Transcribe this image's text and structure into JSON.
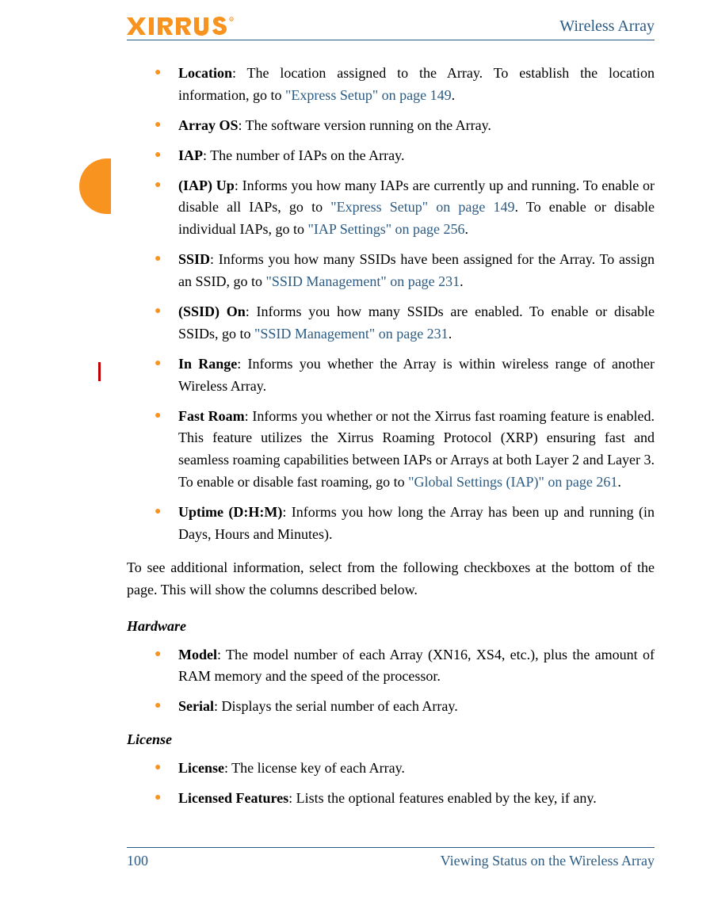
{
  "brand": {
    "name": "XIRRUS",
    "accent_orange": "#f7931e",
    "accent_blue": "#2b5b84"
  },
  "header": {
    "title": "Wireless Array"
  },
  "bullets_main": [
    {
      "term": "Location",
      "segs": [
        {
          "t": ": The location assigned to the Array. To establish the location information, go to "
        },
        {
          "t": "\"Express Setup\" on page 149",
          "link": true
        },
        {
          "t": "."
        }
      ]
    },
    {
      "term": "Array OS",
      "segs": [
        {
          "t": ": The software version running on the Array."
        }
      ]
    },
    {
      "term": "IAP",
      "segs": [
        {
          "t": ": The number of IAPs on the Array."
        }
      ]
    },
    {
      "term": "(IAP) Up",
      "segs": [
        {
          "t": ": Informs you how many IAPs are currently up and running. To enable or disable all IAPs, go to "
        },
        {
          "t": "\"Express Setup\" on page 149",
          "link": true
        },
        {
          "t": ". To enable or disable individual IAPs, go to "
        },
        {
          "t": "\"IAP Settings\" on page 256",
          "link": true
        },
        {
          "t": "."
        }
      ]
    },
    {
      "term": "SSID",
      "segs": [
        {
          "t": ": Informs you how many SSIDs have been assigned for the Array. To assign an SSID, go to "
        },
        {
          "t": "\"SSID Management\" on page 231",
          "link": true
        },
        {
          "t": "."
        }
      ]
    },
    {
      "term": "(SSID) On",
      "segs": [
        {
          "t": ": Informs you how many SSIDs are enabled. To enable or disable SSIDs, go to "
        },
        {
          "t": "\"SSID Management\" on page 231",
          "link": true
        },
        {
          "t": "."
        }
      ]
    },
    {
      "term": "In Range",
      "segs": [
        {
          "t": ": Informs you whether the Array is within wireless range of another Wireless Array."
        }
      ]
    },
    {
      "term": "Fast Roam",
      "segs": [
        {
          "t": ": Informs you whether or not the Xirrus fast roaming feature is enabled. This feature utilizes the Xirrus Roaming Protocol (XRP) ensuring fast and seamless roaming capabilities between IAPs or Arrays at both Layer 2 and Layer 3. To enable or disable fast roaming, go to "
        },
        {
          "t": "\"Global Settings (IAP)\" on page 261",
          "link": true
        },
        {
          "t": "."
        }
      ]
    },
    {
      "term": "Uptime (D:H:M)",
      "segs": [
        {
          "t": ": Informs you how long the Array has been up and running (in Days, Hours and Minutes)."
        }
      ]
    }
  ],
  "paragraph": "To see additional information, select from the following checkboxes at the bottom of the page. This will show the columns described below.",
  "sections": [
    {
      "heading": "Hardware",
      "items": [
        {
          "term": "Model",
          "segs": [
            {
              "t": ": The model number of each Array (XN16, XS4, etc.), plus the amount of RAM memory and the speed of the processor."
            }
          ]
        },
        {
          "term": "Serial",
          "segs": [
            {
              "t": ": Displays the serial number of each Array."
            }
          ]
        }
      ]
    },
    {
      "heading": "License",
      "items": [
        {
          "term": "License",
          "segs": [
            {
              "t": ": The license key of each Array."
            }
          ]
        },
        {
          "term": "Licensed Features",
          "segs": [
            {
              "t": ": Lists the optional features enabled by the key, if any."
            }
          ]
        }
      ]
    }
  ],
  "footer": {
    "page": "100",
    "section": "Viewing Status on the Wireless Array"
  }
}
